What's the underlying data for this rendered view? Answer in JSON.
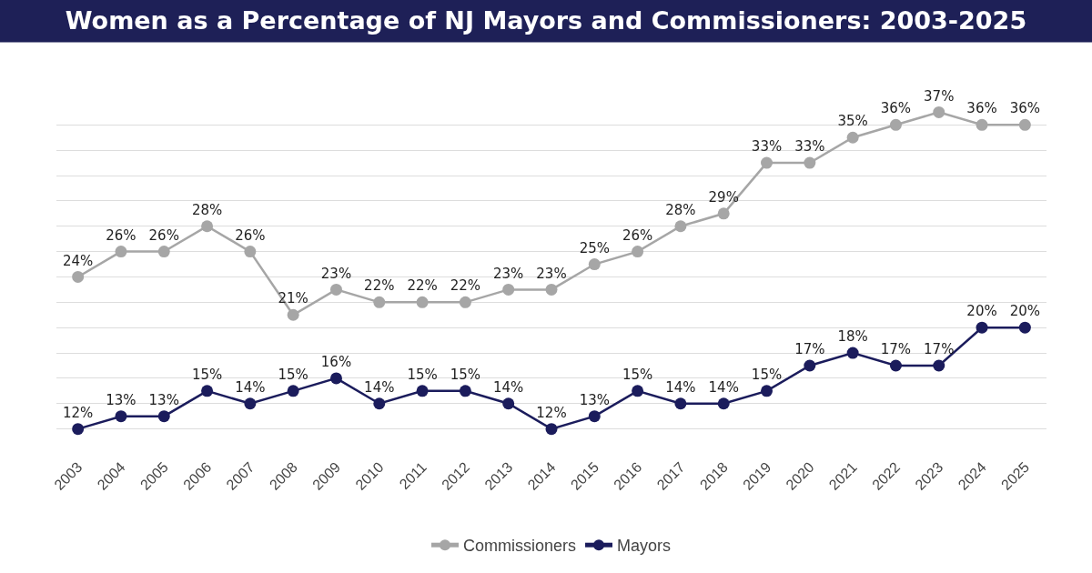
{
  "chart_data": {
    "type": "line",
    "title": "Women as a Percentage of NJ Mayors and Commissioners: 2003-2025",
    "categories": [
      "2003",
      "2004",
      "2005",
      "2006",
      "2007",
      "2008",
      "2009",
      "2010",
      "2011",
      "2012",
      "2013",
      "2014",
      "2015",
      "2016",
      "2017",
      "2018",
      "2019",
      "2020",
      "2021",
      "2022",
      "2023",
      "2024",
      "2025"
    ],
    "series": [
      {
        "name": "Commissioners",
        "color": "#a6a6a6",
        "values": [
          24,
          26,
          26,
          28,
          26,
          21,
          23,
          22,
          22,
          22,
          23,
          23,
          25,
          26,
          28,
          29,
          33,
          33,
          35,
          36,
          37,
          36,
          36
        ],
        "value_labels": [
          "24%",
          "26%",
          "26%",
          "28%",
          "26%",
          "21%",
          "23%",
          "22%",
          "22%",
          "22%",
          "23%",
          "23%",
          "25%",
          "26%",
          "28%",
          "29%",
          "33%",
          "33%",
          "35%",
          "36%",
          "37%",
          "36%",
          "36%"
        ]
      },
      {
        "name": "Mayors",
        "color": "#1b1c5c",
        "values": [
          12,
          13,
          13,
          15,
          14,
          15,
          16,
          14,
          15,
          15,
          14,
          12,
          13,
          15,
          14,
          14,
          15,
          17,
          18,
          17,
          17,
          20,
          20
        ],
        "value_labels": [
          "12%",
          "13%",
          "13%",
          "15%",
          "14%",
          "15%",
          "16%",
          "14%",
          "15%",
          "15%",
          "14%",
          "12%",
          "13%",
          "15%",
          "14%",
          "14%",
          "15%",
          "17%",
          "18%",
          "17%",
          "17%",
          "20%",
          "20%"
        ]
      }
    ],
    "yticks": [
      {
        "value": 12,
        "label": null
      },
      {
        "value": 14,
        "label": null
      },
      {
        "value": 16,
        "label": null
      },
      {
        "value": 18,
        "label": null
      },
      {
        "value": 20,
        "label": null
      },
      {
        "value": 22,
        "label": null
      },
      {
        "value": 24,
        "label": null
      },
      {
        "value": 26,
        "label": null
      },
      {
        "value": 28,
        "label": null
      },
      {
        "value": 30,
        "label": null
      },
      {
        "value": 32,
        "label": null
      },
      {
        "value": 34,
        "label": null
      },
      {
        "value": 36,
        "label": null
      }
    ],
    "tick_labels": "x",
    "grid": "y",
    "legend": "bottom",
    "marker": "circle",
    "line_style": "solid"
  }
}
